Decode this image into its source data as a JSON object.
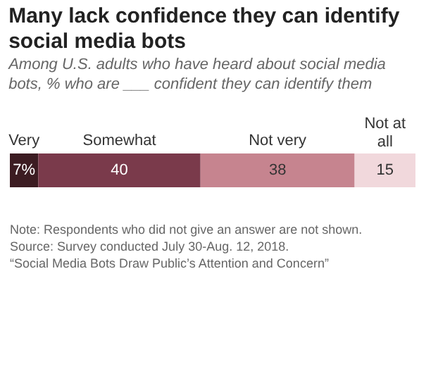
{
  "chart_data": {
    "type": "bar",
    "orientation": "horizontal",
    "stacked": true,
    "title": "Many lack confidence they can identify social media bots",
    "subtitle": "Among U.S. adults who have heard about social media bots, % who are ___ confident they can identify them",
    "categories": [
      null
    ],
    "series": [
      {
        "name": "Very",
        "color": "#3c1c22",
        "values": [
          7
        ],
        "value_labels": [
          "7%"
        ]
      },
      {
        "name": "Somewhat",
        "color": "#7a3a4b",
        "values": [
          40
        ],
        "value_labels": [
          "40"
        ]
      },
      {
        "name": "Not very",
        "color": "#c6848f",
        "values": [
          38
        ],
        "value_labels": [
          "38"
        ]
      },
      {
        "name": "Not at all",
        "color": "#f1d8dc",
        "values": [
          15
        ],
        "value_labels": [
          "15"
        ]
      }
    ],
    "annotations": [
      "Note: Respondents who did not give an answer are not shown.",
      "Source: Survey conducted July 30-Aug. 12, 2018.",
      "“Social Media Bots Draw Public’s Attention and Concern”"
    ]
  }
}
